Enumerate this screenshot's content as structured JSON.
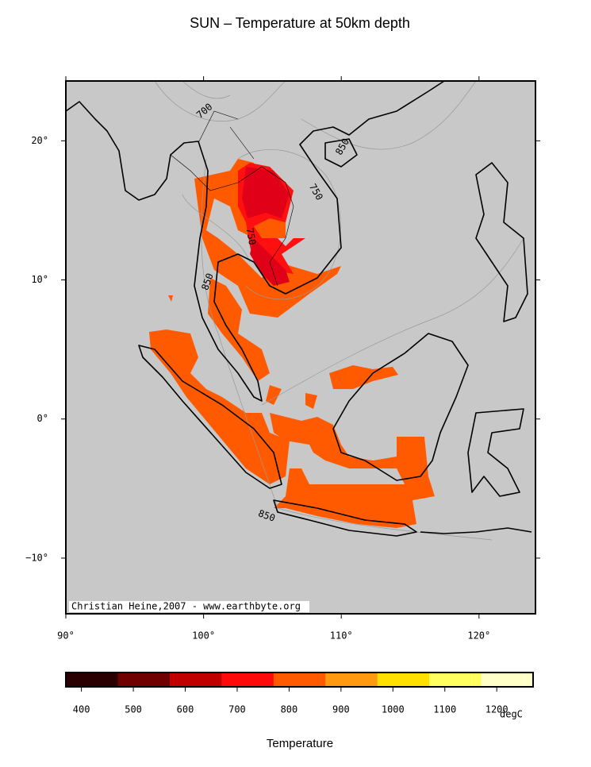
{
  "title": "SUN – Temperature at 50km depth",
  "map": {
    "xlim": [
      90,
      124.1
    ],
    "ylim": [
      -14,
      24.3
    ],
    "xticks": [
      {
        "value": 90,
        "label": "90°"
      },
      {
        "value": 100,
        "label": "100°"
      },
      {
        "value": 110,
        "label": "110°"
      },
      {
        "value": 120,
        "label": "120°"
      }
    ],
    "yticks": [
      {
        "value": 20,
        "label": "20°"
      },
      {
        "value": 10,
        "label": "10°"
      },
      {
        "value": 0,
        "label": "0°"
      },
      {
        "value": -10,
        "label": "−10°"
      }
    ],
    "background": "#c8c8c8",
    "contour_labels": [
      700,
      750,
      750,
      850,
      850,
      850
    ],
    "credit": "Christian Heine,2007 - www.earthbyte.org"
  },
  "colorbar": {
    "lim": [
      370,
      1270
    ],
    "ticks": [
      400,
      500,
      600,
      700,
      800,
      900,
      1000,
      1100,
      1200
    ],
    "colors": [
      "#2a0000",
      "#700000",
      "#c00000",
      "#ff0a0a",
      "#ff5a00",
      "#ff9a10",
      "#ffe000",
      "#ffff60",
      "#ffffc8"
    ],
    "unit": "degC",
    "label": "Temperature"
  }
}
